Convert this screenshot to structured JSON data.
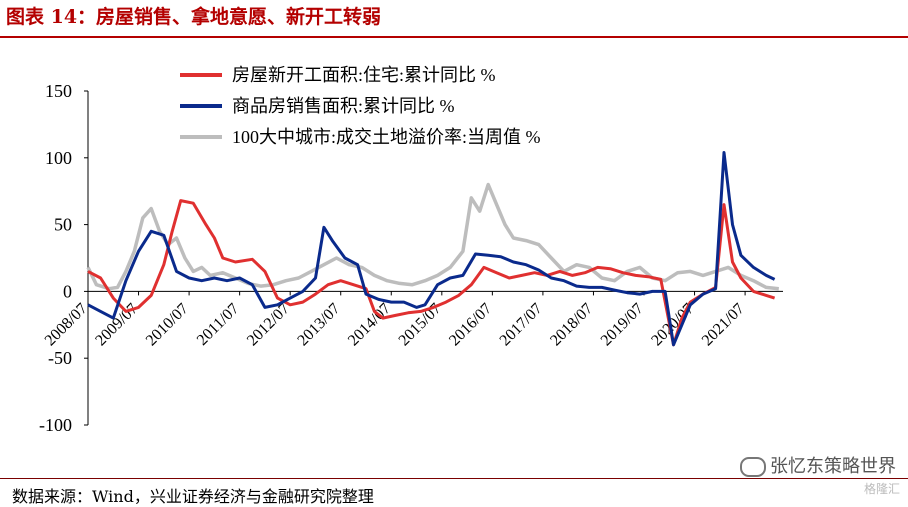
{
  "header": {
    "title": "图表 14：房屋销售、拿地意愿、新开工转弱"
  },
  "footer": {
    "source": "数据来源：Wind，兴业证券经济与金融研究院整理"
  },
  "watermark": {
    "text": "张忆东策略世界",
    "secondary": "格隆汇"
  },
  "chart_data": {
    "type": "line",
    "title": "",
    "xlabel": "",
    "ylabel": "",
    "ylim": [
      -100,
      150
    ],
    "yticks": [
      "150",
      "100",
      "50",
      "0",
      "-50",
      "-100"
    ],
    "xlim": [
      "2008-07",
      "2022-04"
    ],
    "xticks": [
      "2008/07",
      "2009/07",
      "2010/07",
      "2011/07",
      "2012/07",
      "2013/07",
      "2014/07",
      "2015/07",
      "2016/07",
      "2017/07",
      "2018/07",
      "2019/07",
      "2020/07",
      "2021/07"
    ],
    "legend": {
      "placement": "top-center"
    },
    "grid": false,
    "series": [
      {
        "name": "房屋新开工面积:住宅:累计同比 %",
        "color": "#e03030",
        "points": [
          [
            "2008-07",
            15
          ],
          [
            "2008-10",
            10
          ],
          [
            "2009-01",
            -5
          ],
          [
            "2009-04",
            -15
          ],
          [
            "2009-07",
            -12
          ],
          [
            "2009-10",
            -3
          ],
          [
            "2010-01",
            20
          ],
          [
            "2010-03",
            45
          ],
          [
            "2010-05",
            68
          ],
          [
            "2010-08",
            66
          ],
          [
            "2010-11",
            50
          ],
          [
            "2011-01",
            40
          ],
          [
            "2011-03",
            25
          ],
          [
            "2011-06",
            22
          ],
          [
            "2011-10",
            24
          ],
          [
            "2012-01",
            15
          ],
          [
            "2012-04",
            -5
          ],
          [
            "2012-07",
            -10
          ],
          [
            "2012-10",
            -8
          ],
          [
            "2013-01",
            -2
          ],
          [
            "2013-04",
            5
          ],
          [
            "2013-07",
            8
          ],
          [
            "2013-10",
            5
          ],
          [
            "2014-01",
            2
          ],
          [
            "2014-03",
            -15
          ],
          [
            "2014-05",
            -20
          ],
          [
            "2014-08",
            -18
          ],
          [
            "2014-11",
            -16
          ],
          [
            "2015-02",
            -15
          ],
          [
            "2015-05",
            -12
          ],
          [
            "2015-08",
            -8
          ],
          [
            "2015-11",
            -3
          ],
          [
            "2016-02",
            5
          ],
          [
            "2016-05",
            18
          ],
          [
            "2016-08",
            14
          ],
          [
            "2016-11",
            10
          ],
          [
            "2017-02",
            12
          ],
          [
            "2017-05",
            14
          ],
          [
            "2017-08",
            12
          ],
          [
            "2017-11",
            15
          ],
          [
            "2018-02",
            12
          ],
          [
            "2018-05",
            14
          ],
          [
            "2018-08",
            18
          ],
          [
            "2018-11",
            17
          ],
          [
            "2019-02",
            14
          ],
          [
            "2019-05",
            12
          ],
          [
            "2019-08",
            11
          ],
          [
            "2019-11",
            9
          ],
          [
            "2020-02",
            -40
          ],
          [
            "2020-04",
            -20
          ],
          [
            "2020-06",
            -8
          ],
          [
            "2020-09",
            -2
          ],
          [
            "2020-12",
            3
          ],
          [
            "2021-02",
            65
          ],
          [
            "2021-04",
            22
          ],
          [
            "2021-06",
            10
          ],
          [
            "2021-09",
            0
          ],
          [
            "2021-12",
            -3
          ],
          [
            "2022-02",
            -5
          ]
        ]
      },
      {
        "name": "商品房销售面积:累计同比 %",
        "color": "#0a2a8c",
        "points": [
          [
            "2008-07",
            -10
          ],
          [
            "2008-10",
            -15
          ],
          [
            "2009-01",
            -20
          ],
          [
            "2009-04",
            8
          ],
          [
            "2009-07",
            30
          ],
          [
            "2009-10",
            45
          ],
          [
            "2010-01",
            42
          ],
          [
            "2010-04",
            15
          ],
          [
            "2010-07",
            10
          ],
          [
            "2010-10",
            8
          ],
          [
            "2011-01",
            10
          ],
          [
            "2011-04",
            8
          ],
          [
            "2011-07",
            10
          ],
          [
            "2011-10",
            5
          ],
          [
            "2012-01",
            -12
          ],
          [
            "2012-04",
            -10
          ],
          [
            "2012-07",
            -5
          ],
          [
            "2012-10",
            0
          ],
          [
            "2013-01",
            10
          ],
          [
            "2013-03",
            48
          ],
          [
            "2013-05",
            38
          ],
          [
            "2013-08",
            25
          ],
          [
            "2013-11",
            20
          ],
          [
            "2014-01",
            -2
          ],
          [
            "2014-04",
            -6
          ],
          [
            "2014-07",
            -8
          ],
          [
            "2014-10",
            -8
          ],
          [
            "2015-01",
            -12
          ],
          [
            "2015-03",
            -10
          ],
          [
            "2015-06",
            5
          ],
          [
            "2015-09",
            10
          ],
          [
            "2015-12",
            12
          ],
          [
            "2016-03",
            28
          ],
          [
            "2016-06",
            27
          ],
          [
            "2016-09",
            26
          ],
          [
            "2016-12",
            22
          ],
          [
            "2017-03",
            20
          ],
          [
            "2017-06",
            16
          ],
          [
            "2017-09",
            10
          ],
          [
            "2017-12",
            8
          ],
          [
            "2018-03",
            4
          ],
          [
            "2018-06",
            3
          ],
          [
            "2018-09",
            3
          ],
          [
            "2018-12",
            1
          ],
          [
            "2019-03",
            -1
          ],
          [
            "2019-06",
            -2
          ],
          [
            "2019-09",
            0
          ],
          [
            "2019-12",
            0
          ],
          [
            "2020-02",
            -40
          ],
          [
            "2020-04",
            -25
          ],
          [
            "2020-06",
            -10
          ],
          [
            "2020-09",
            -2
          ],
          [
            "2020-12",
            2
          ],
          [
            "2021-02",
            104
          ],
          [
            "2021-04",
            50
          ],
          [
            "2021-06",
            27
          ],
          [
            "2021-09",
            18
          ],
          [
            "2021-12",
            12
          ],
          [
            "2022-02",
            9
          ]
        ]
      },
      {
        "name": "100大中城市:成交土地溢价率:当周值 %",
        "color": "#bdbdbd",
        "points": [
          [
            "2008-07",
            18
          ],
          [
            "2008-09",
            5
          ],
          [
            "2008-12",
            2
          ],
          [
            "2009-02",
            3
          ],
          [
            "2009-04",
            15
          ],
          [
            "2009-06",
            30
          ],
          [
            "2009-08",
            55
          ],
          [
            "2009-10",
            62
          ],
          [
            "2009-12",
            45
          ],
          [
            "2010-02",
            35
          ],
          [
            "2010-04",
            40
          ],
          [
            "2010-06",
            25
          ],
          [
            "2010-08",
            15
          ],
          [
            "2010-10",
            18
          ],
          [
            "2010-12",
            12
          ],
          [
            "2011-03",
            14
          ],
          [
            "2011-06",
            10
          ],
          [
            "2011-09",
            6
          ],
          [
            "2011-12",
            4
          ],
          [
            "2012-03",
            5
          ],
          [
            "2012-06",
            8
          ],
          [
            "2012-09",
            10
          ],
          [
            "2012-12",
            15
          ],
          [
            "2013-03",
            20
          ],
          [
            "2013-06",
            25
          ],
          [
            "2013-09",
            20
          ],
          [
            "2013-12",
            18
          ],
          [
            "2014-03",
            12
          ],
          [
            "2014-06",
            8
          ],
          [
            "2014-09",
            6
          ],
          [
            "2014-12",
            5
          ],
          [
            "2015-03",
            8
          ],
          [
            "2015-06",
            12
          ],
          [
            "2015-09",
            18
          ],
          [
            "2015-12",
            30
          ],
          [
            "2016-02",
            70
          ],
          [
            "2016-04",
            60
          ],
          [
            "2016-06",
            80
          ],
          [
            "2016-08",
            65
          ],
          [
            "2016-10",
            50
          ],
          [
            "2016-12",
            40
          ],
          [
            "2017-03",
            38
          ],
          [
            "2017-06",
            35
          ],
          [
            "2017-09",
            25
          ],
          [
            "2017-12",
            15
          ],
          [
            "2018-03",
            20
          ],
          [
            "2018-06",
            18
          ],
          [
            "2018-09",
            10
          ],
          [
            "2018-12",
            8
          ],
          [
            "2019-03",
            15
          ],
          [
            "2019-06",
            18
          ],
          [
            "2019-09",
            10
          ],
          [
            "2019-12",
            8
          ],
          [
            "2020-03",
            14
          ],
          [
            "2020-06",
            15
          ],
          [
            "2020-09",
            12
          ],
          [
            "2020-12",
            15
          ],
          [
            "2021-03",
            18
          ],
          [
            "2021-06",
            12
          ],
          [
            "2021-09",
            8
          ],
          [
            "2021-12",
            3
          ],
          [
            "2022-03",
            2
          ]
        ]
      }
    ]
  }
}
